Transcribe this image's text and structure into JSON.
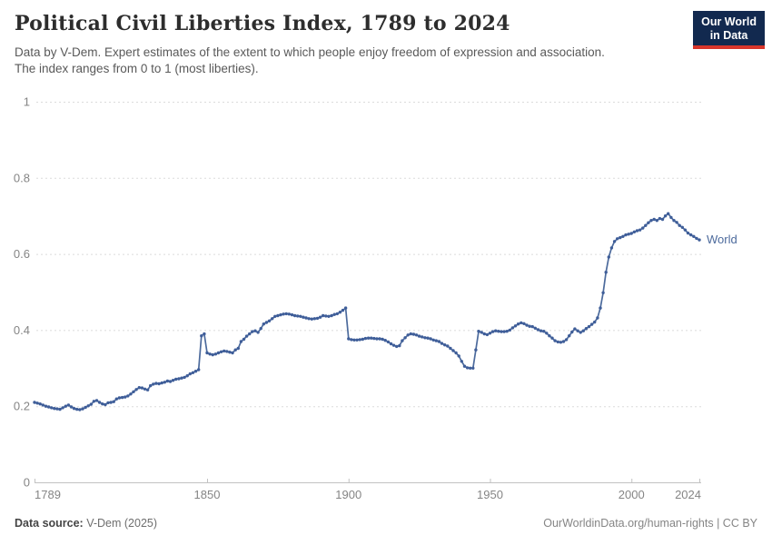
{
  "header": {
    "title": "Political Civil Liberties Index, 1789 to 2024",
    "subtitle_line1": "Data by V-Dem. Expert estimates of the extent to which people enjoy freedom of expression and association.",
    "subtitle_line2": "The index ranges from 0 to 1 (most liberties)."
  },
  "logo": {
    "line1": "Our World",
    "line2": "in Data",
    "bg_color": "#12294F",
    "accent_color": "#D8352B",
    "text_color": "#FFFFFF"
  },
  "footer": {
    "source_label": "Data source:",
    "source_value": "V-Dem (2025)",
    "credit": "OurWorldinData.org/human-rights | CC BY"
  },
  "colors": {
    "grid": "#DBDBDB",
    "axis": "#C2C2C2",
    "tick_label": "#858585",
    "line": "#4C6A9C",
    "point": "#3F5E99",
    "end_label": "#4C6A9C"
  },
  "chart_data": {
    "type": "line",
    "title": "Political Civil Liberties Index, 1789 to 2024",
    "xlabel": "",
    "ylabel": "",
    "xlim": [
      1789,
      2024
    ],
    "ylim": [
      0,
      1
    ],
    "grid": "horizontal-dashed",
    "legend_position": "end-of-line",
    "end_label": "World",
    "x_ticks": [
      1789,
      1850,
      1900,
      1950,
      2000,
      2024
    ],
    "y_ticks": [
      "0",
      "0.2",
      "0.4",
      "0.6",
      "0.8",
      "1"
    ],
    "series": [
      {
        "name": "World",
        "start_year": 1789,
        "end_year": 2024,
        "values": [
          0.21,
          0.208,
          0.206,
          0.203,
          0.2,
          0.198,
          0.196,
          0.194,
          0.193,
          0.192,
          0.196,
          0.2,
          0.203,
          0.198,
          0.194,
          0.192,
          0.191,
          0.193,
          0.197,
          0.201,
          0.205,
          0.213,
          0.215,
          0.21,
          0.206,
          0.204,
          0.209,
          0.21,
          0.212,
          0.219,
          0.222,
          0.223,
          0.224,
          0.227,
          0.232,
          0.238,
          0.244,
          0.249,
          0.248,
          0.245,
          0.243,
          0.254,
          0.258,
          0.26,
          0.259,
          0.261,
          0.263,
          0.266,
          0.265,
          0.268,
          0.271,
          0.272,
          0.274,
          0.276,
          0.28,
          0.285,
          0.288,
          0.292,
          0.296,
          0.385,
          0.39,
          0.34,
          0.337,
          0.335,
          0.337,
          0.34,
          0.343,
          0.345,
          0.344,
          0.342,
          0.34,
          0.348,
          0.352,
          0.37,
          0.376,
          0.384,
          0.39,
          0.396,
          0.398,
          0.394,
          0.404,
          0.416,
          0.42,
          0.424,
          0.43,
          0.436,
          0.438,
          0.44,
          0.442,
          0.443,
          0.442,
          0.44,
          0.438,
          0.437,
          0.436,
          0.434,
          0.432,
          0.43,
          0.429,
          0.43,
          0.431,
          0.434,
          0.438,
          0.437,
          0.436,
          0.438,
          0.441,
          0.443,
          0.447,
          0.452,
          0.458,
          0.377,
          0.375,
          0.374,
          0.374,
          0.375,
          0.376,
          0.378,
          0.379,
          0.379,
          0.378,
          0.377,
          0.377,
          0.376,
          0.373,
          0.369,
          0.364,
          0.36,
          0.357,
          0.359,
          0.372,
          0.38,
          0.387,
          0.39,
          0.389,
          0.387,
          0.384,
          0.382,
          0.38,
          0.379,
          0.377,
          0.374,
          0.372,
          0.37,
          0.365,
          0.361,
          0.358,
          0.352,
          0.346,
          0.34,
          0.332,
          0.318,
          0.305,
          0.301,
          0.3,
          0.3,
          0.348,
          0.397,
          0.394,
          0.39,
          0.388,
          0.392,
          0.396,
          0.398,
          0.397,
          0.396,
          0.396,
          0.397,
          0.4,
          0.406,
          0.411,
          0.416,
          0.419,
          0.417,
          0.413,
          0.41,
          0.409,
          0.405,
          0.401,
          0.398,
          0.397,
          0.392,
          0.385,
          0.379,
          0.372,
          0.369,
          0.368,
          0.37,
          0.375,
          0.385,
          0.395,
          0.403,
          0.398,
          0.394,
          0.398,
          0.404,
          0.409,
          0.415,
          0.421,
          0.432,
          0.458,
          0.498,
          0.552,
          0.592,
          0.616,
          0.633,
          0.64,
          0.643,
          0.646,
          0.65,
          0.652,
          0.654,
          0.658,
          0.661,
          0.663,
          0.668,
          0.675,
          0.682,
          0.688,
          0.691,
          0.688,
          0.693,
          0.691,
          0.7,
          0.706,
          0.696,
          0.688,
          0.683,
          0.675,
          0.67,
          0.663,
          0.655,
          0.65,
          0.646,
          0.641,
          0.637
        ]
      }
    ]
  }
}
